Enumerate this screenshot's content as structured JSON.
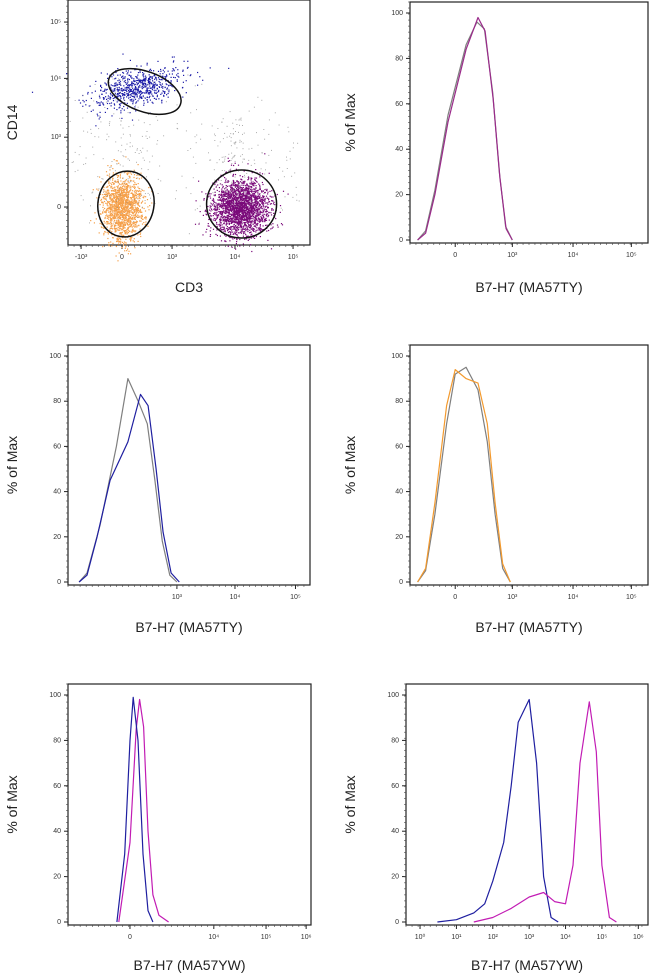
{
  "colors": {
    "cd14_monocytes": "#1c1ca8",
    "cd3_negative": "#f5a04a",
    "cd3_positive": "#7a0a7a",
    "ungated": "#8a8a8a",
    "hist_gray": "#7f7f7f",
    "hist_blue": "#1f1fa0",
    "hist_purple": "#9a2a8a",
    "hist_orange": "#f39a2e",
    "hist_magenta": "#c21cb4"
  },
  "chart_data": [
    {
      "type": "scatter",
      "xlabel": "CD3",
      "ylabel": "CD14",
      "x_ticks": [
        {
          "v": -1000,
          "label": "-10³"
        },
        {
          "v": 0,
          "label": "0"
        },
        {
          "v": 1000,
          "label": "10³"
        },
        {
          "v": 10000,
          "label": "10⁴"
        },
        {
          "v": 100000,
          "label": "10⁵"
        }
      ],
      "y_ticks": [
        {
          "v": 0,
          "label": "0"
        },
        {
          "v": 1000,
          "label": "10³"
        },
        {
          "v": 10000,
          "label": "10⁴"
        },
        {
          "v": 100000,
          "label": "10⁵"
        }
      ],
      "populations": [
        {
          "color_key": "cd14_monocytes",
          "center": [
            100,
            7000
          ],
          "gated": true
        },
        {
          "color_key": "cd3_negative",
          "center": [
            0,
            0
          ],
          "gated": true
        },
        {
          "color_key": "cd3_positive",
          "center": [
            12000,
            0
          ],
          "gated": true
        },
        {
          "color_key": "ungated",
          "center": [
            500,
            300
          ],
          "gated": false
        }
      ]
    },
    {
      "type": "line",
      "xlabel": "B7-H7 (MA57TY)",
      "ylabel": "% of Max",
      "ylim": [
        0,
        100
      ],
      "y_ticks": [
        0,
        20,
        40,
        60,
        80,
        100
      ],
      "x_ticks": [
        {
          "v": 0,
          "label": "0"
        },
        {
          "v": 1000,
          "label": "10³"
        },
        {
          "v": 10000,
          "label": "10⁴"
        },
        {
          "v": 100000,
          "label": "10⁵"
        }
      ],
      "series": [
        {
          "color_key": "hist_gray",
          "points": [
            [
              -600,
              0
            ],
            [
              -350,
              4
            ],
            [
              -180,
              22
            ],
            [
              -50,
              55
            ],
            [
              60,
              86
            ],
            [
              140,
              96
            ],
            [
              220,
              93
            ],
            [
              350,
              65
            ],
            [
              500,
              30
            ],
            [
              700,
              6
            ],
            [
              1000,
              0
            ]
          ]
        },
        {
          "color_key": "hist_purple",
          "points": [
            [
              -600,
              0
            ],
            [
              -350,
              3
            ],
            [
              -180,
              20
            ],
            [
              -50,
              52
            ],
            [
              60,
              84
            ],
            [
              150,
              98
            ],
            [
              230,
              92
            ],
            [
              360,
              62
            ],
            [
              520,
              27
            ],
            [
              720,
              5
            ],
            [
              1000,
              0
            ]
          ]
        }
      ]
    },
    {
      "type": "line",
      "xlabel": "B7-H7 (MA57TY)",
      "ylabel": "% of Max",
      "ylim": [
        0,
        100
      ],
      "y_ticks": [
        0,
        20,
        40,
        60,
        80,
        100
      ],
      "x_ticks": [
        {
          "v": 1000,
          "label": "10³"
        },
        {
          "v": 10000,
          "label": "10⁴"
        },
        {
          "v": 100000,
          "label": "10⁵"
        }
      ],
      "series": [
        {
          "color_key": "hist_gray",
          "points": [
            [
              -500,
              0
            ],
            [
              -300,
              4
            ],
            [
              -120,
              25
            ],
            [
              0,
              60
            ],
            [
              60,
              90
            ],
            [
              130,
              80
            ],
            [
              220,
              70
            ],
            [
              330,
              45
            ],
            [
              480,
              18
            ],
            [
              700,
              3
            ],
            [
              1000,
              0
            ]
          ]
        },
        {
          "color_key": "hist_blue",
          "points": [
            [
              -500,
              0
            ],
            [
              -300,
              3
            ],
            [
              -150,
              20
            ],
            [
              -40,
              45
            ],
            [
              60,
              62
            ],
            [
              150,
              83
            ],
            [
              230,
              78
            ],
            [
              350,
              50
            ],
            [
              500,
              22
            ],
            [
              750,
              4
            ],
            [
              1100,
              0
            ]
          ]
        }
      ]
    },
    {
      "type": "line",
      "xlabel": "B7-H7 (MA57TY)",
      "ylabel": "% of Max",
      "ylim": [
        0,
        100
      ],
      "y_ticks": [
        0,
        20,
        40,
        60,
        80,
        100
      ],
      "x_ticks": [
        {
          "v": 0,
          "label": "0"
        },
        {
          "v": 1000,
          "label": "10³"
        },
        {
          "v": 10000,
          "label": "10⁴"
        },
        {
          "v": 100000,
          "label": "10⁵"
        }
      ],
      "series": [
        {
          "color_key": "hist_gray",
          "points": [
            [
              -600,
              0
            ],
            [
              -350,
              5
            ],
            [
              -180,
              30
            ],
            [
              -60,
              70
            ],
            [
              0,
              92
            ],
            [
              60,
              95
            ],
            [
              150,
              85
            ],
            [
              260,
              62
            ],
            [
              400,
              30
            ],
            [
              600,
              6
            ],
            [
              900,
              0
            ]
          ]
        },
        {
          "color_key": "hist_orange",
          "points": [
            [
              -600,
              0
            ],
            [
              -350,
              6
            ],
            [
              -180,
              35
            ],
            [
              -60,
              78
            ],
            [
              0,
              94
            ],
            [
              60,
              90
            ],
            [
              150,
              88
            ],
            [
              260,
              70
            ],
            [
              400,
              35
            ],
            [
              600,
              8
            ],
            [
              900,
              0
            ]
          ]
        }
      ]
    },
    {
      "type": "line",
      "xlabel": "B7-H7 (MA57YW)",
      "ylabel": "% of Max",
      "ylim": [
        0,
        100
      ],
      "y_ticks": [
        0,
        20,
        40,
        60,
        80,
        100
      ],
      "x_ticks": [
        {
          "v": 0,
          "label": "0"
        },
        {
          "v": 10000,
          "label": "10⁴"
        },
        {
          "v": 100000,
          "label": "10⁵"
        },
        {
          "v": 1000000,
          "label": "10⁶"
        }
      ],
      "series": [
        {
          "color_key": "hist_magenta",
          "points": [
            [
              -120,
              0
            ],
            [
              0,
              35
            ],
            [
              60,
              85
            ],
            [
              100,
              98
            ],
            [
              160,
              86
            ],
            [
              250,
              40
            ],
            [
              400,
              12
            ],
            [
              700,
              3
            ],
            [
              1300,
              0
            ]
          ]
        },
        {
          "color_key": "hist_blue",
          "points": [
            [
              -150,
              0
            ],
            [
              -50,
              30
            ],
            [
              0,
              80
            ],
            [
              30,
              99
            ],
            [
              80,
              80
            ],
            [
              150,
              30
            ],
            [
              250,
              5
            ],
            [
              400,
              0
            ]
          ]
        }
      ]
    },
    {
      "type": "line",
      "xlabel": "B7-H7 (MA57YW)",
      "ylabel": "% of Max",
      "ylim": [
        0,
        100
      ],
      "x_scale": "log",
      "y_ticks": [
        0,
        20,
        40,
        60,
        80,
        100
      ],
      "x_ticks": [
        {
          "v": 1,
          "label": "10⁰"
        },
        {
          "v": 10,
          "label": "10¹"
        },
        {
          "v": 100,
          "label": "10²"
        },
        {
          "v": 1000,
          "label": "10³"
        },
        {
          "v": 10000,
          "label": "10⁴"
        },
        {
          "v": 100000,
          "label": "10⁵"
        },
        {
          "v": 1000000,
          "label": "10⁶"
        }
      ],
      "series": [
        {
          "color_key": "hist_blue",
          "points": [
            [
              3,
              0
            ],
            [
              10,
              1
            ],
            [
              30,
              4
            ],
            [
              60,
              8
            ],
            [
              100,
              18
            ],
            [
              200,
              35
            ],
            [
              320,
              60
            ],
            [
              500,
              88
            ],
            [
              1000,
              98
            ],
            [
              1600,
              70
            ],
            [
              2500,
              20
            ],
            [
              4000,
              2
            ],
            [
              6300,
              0
            ]
          ]
        },
        {
          "color_key": "hist_magenta",
          "points": [
            [
              30,
              0
            ],
            [
              100,
              2
            ],
            [
              320,
              6
            ],
            [
              1000,
              11
            ],
            [
              2500,
              13
            ],
            [
              5000,
              9
            ],
            [
              10000,
              8
            ],
            [
              16000,
              25
            ],
            [
              25000,
              70
            ],
            [
              45000,
              97
            ],
            [
              70000,
              75
            ],
            [
              100000,
              25
            ],
            [
              160000,
              2
            ],
            [
              250000,
              0
            ]
          ]
        }
      ]
    }
  ]
}
